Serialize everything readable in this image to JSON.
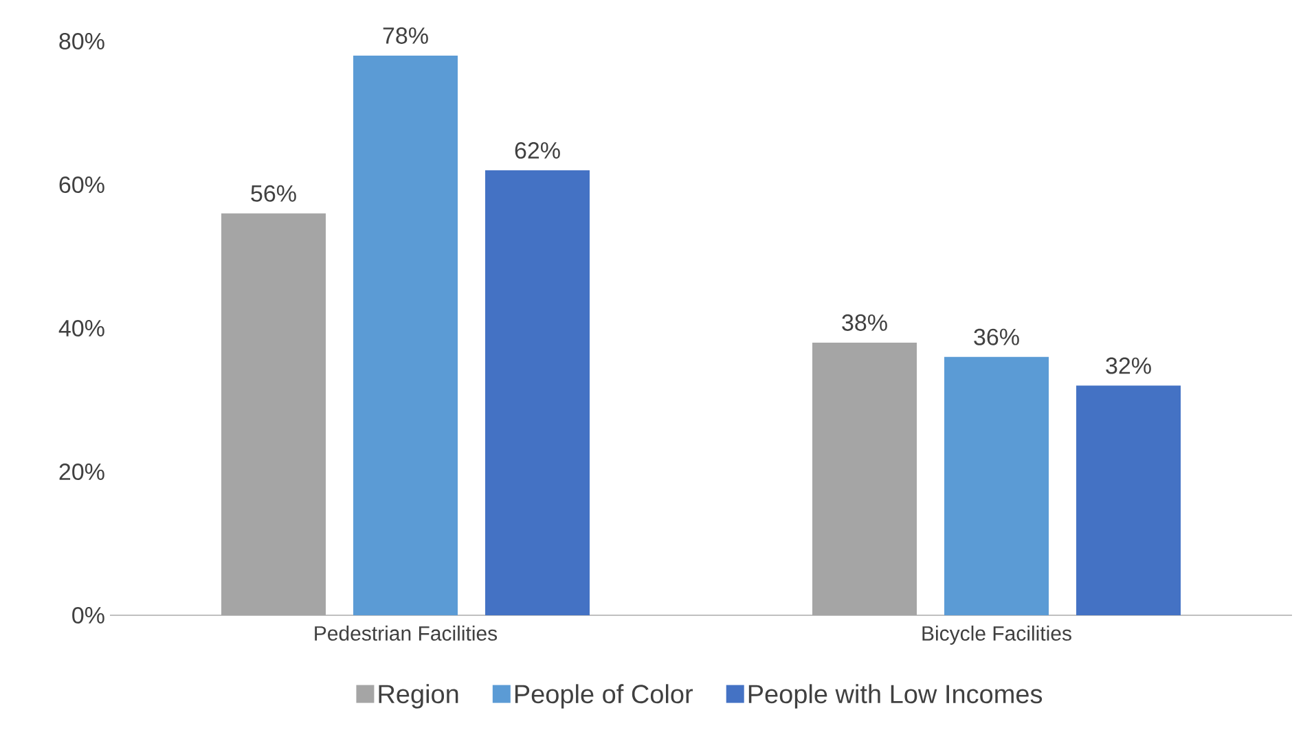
{
  "chart_data": {
    "type": "bar",
    "categories": [
      "Pedestrian Facilities",
      "Bicycle Facilities"
    ],
    "series": [
      {
        "name": "Region",
        "color": "#a5a5a5",
        "values": [
          56,
          38
        ],
        "value_labels": [
          "56%",
          "38%"
        ]
      },
      {
        "name": "People of Color",
        "color": "#5b9bd5",
        "values": [
          78,
          36
        ],
        "value_labels": [
          "78%",
          "36%"
        ]
      },
      {
        "name": "People with Low Incomes",
        "color": "#4472c4",
        "values": [
          62,
          32
        ],
        "value_labels": [
          "62%",
          "32%"
        ]
      }
    ],
    "ylim": [
      0,
      80
    ],
    "yticks": [
      {
        "value": 0,
        "label": "0%"
      },
      {
        "value": 20,
        "label": "20%"
      },
      {
        "value": 40,
        "label": "40%"
      },
      {
        "value": 60,
        "label": "60%"
      },
      {
        "value": 80,
        "label": "80%"
      }
    ],
    "grid": false,
    "legend": "bottom"
  }
}
